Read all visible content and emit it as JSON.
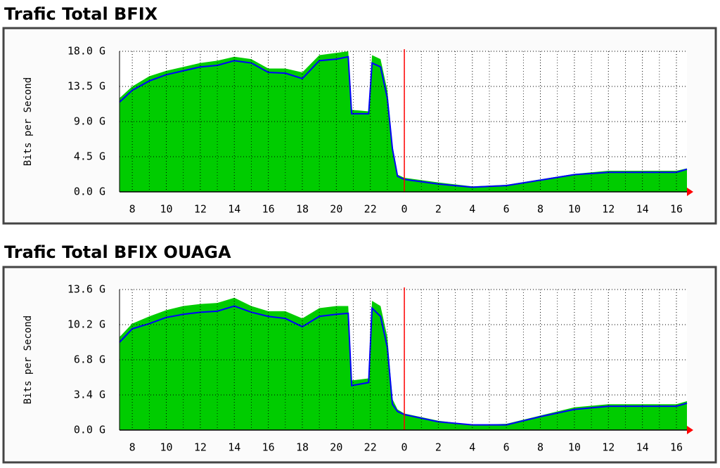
{
  "chart_data": [
    {
      "type": "area",
      "title": "Trafic Total BFIX",
      "y_label": "Bits per Second",
      "x": [
        7.25,
        8,
        9,
        10,
        11,
        12,
        13,
        14,
        15,
        16,
        17,
        18,
        19,
        20,
        20.7,
        20.9,
        21.9,
        22.1,
        22.6,
        23,
        23.3,
        23.6,
        24,
        26,
        28,
        30,
        32,
        34,
        36,
        38,
        40,
        40.62
      ],
      "series": [
        {
          "color": "#00cc00",
          "values": [
            12,
            13.5,
            14.8,
            15.5,
            16,
            16.5,
            16.8,
            17.3,
            17,
            15.8,
            15.8,
            15.3,
            17.5,
            17.8,
            18,
            10.5,
            10.3,
            17.5,
            17,
            13,
            6,
            2.2,
            1.8,
            1.2,
            0.7,
            0.9,
            1.6,
            2.3,
            2.7,
            2.7,
            2.7,
            3.0
          ]
        },
        {
          "color": "#0000ff",
          "values": [
            11.5,
            13,
            14.2,
            15,
            15.5,
            16,
            16.2,
            16.8,
            16.5,
            15.3,
            15.2,
            14.5,
            16.8,
            17,
            17.3,
            10,
            10,
            16.5,
            16,
            12,
            5.5,
            2,
            1.6,
            1,
            0.6,
            0.8,
            1.5,
            2.2,
            2.5,
            2.5,
            2.5,
            2.9
          ]
        }
      ],
      "xlim": [
        7.25,
        40.62
      ],
      "xticks": [
        8,
        10,
        12,
        14,
        16,
        18,
        20,
        22,
        {
          "value": 24,
          "label": "0"
        },
        {
          "value": 26,
          "label": "2"
        },
        {
          "value": 28,
          "label": "4"
        },
        {
          "value": 30,
          "label": "6"
        },
        {
          "value": 32,
          "label": "8"
        },
        {
          "value": 34,
          "label": "10"
        },
        {
          "value": 36,
          "label": "12"
        },
        {
          "value": 38,
          "label": "14"
        },
        {
          "value": 40,
          "label": "16"
        }
      ],
      "ylim": [
        0,
        18
      ],
      "yticks": [
        {
          "value": 0,
          "label": "0.0 G"
        },
        {
          "value": 4.5,
          "label": "4.5 G"
        },
        {
          "value": 9,
          "label": "9.0 G"
        },
        {
          "value": 13.5,
          "label": "13.5 G"
        },
        {
          "value": 18,
          "label": "18.0 G"
        }
      ],
      "grid": true,
      "vrule": 24,
      "vrule_color": "#ff0000"
    },
    {
      "type": "area",
      "title": "Trafic Total BFIX OUAGA",
      "y_label": "Bits per Second",
      "x": [
        7.25,
        8,
        9,
        10,
        11,
        12,
        13,
        14,
        15,
        16,
        17,
        18,
        19,
        20,
        20.7,
        20.9,
        21.9,
        22.1,
        22.6,
        23,
        23.3,
        23.6,
        24,
        26,
        28,
        30,
        32,
        34,
        36,
        38,
        40,
        40.62
      ],
      "series": [
        {
          "color": "#00cc00",
          "values": [
            9,
            10.3,
            11,
            11.6,
            12,
            12.2,
            12.3,
            12.8,
            12,
            11.5,
            11.5,
            10.8,
            11.8,
            12,
            12,
            4.8,
            5,
            12.5,
            12,
            9,
            3,
            2,
            1.6,
            0.9,
            0.5,
            0.6,
            1.4,
            2.2,
            2.5,
            2.5,
            2.5,
            2.8
          ]
        },
        {
          "color": "#0000ff",
          "values": [
            8.5,
            9.8,
            10.3,
            10.9,
            11.2,
            11.4,
            11.5,
            12,
            11.4,
            11,
            10.8,
            10,
            11,
            11.2,
            11.3,
            4.3,
            4.6,
            11.8,
            11,
            8,
            2.5,
            1.8,
            1.5,
            0.8,
            0.5,
            0.5,
            1.3,
            2.0,
            2.3,
            2.3,
            2.3,
            2.6
          ]
        }
      ],
      "xlim": [
        7.25,
        40.62
      ],
      "xticks": [
        8,
        10,
        12,
        14,
        16,
        18,
        20,
        22,
        {
          "value": 24,
          "label": "0"
        },
        {
          "value": 26,
          "label": "2"
        },
        {
          "value": 28,
          "label": "4"
        },
        {
          "value": 30,
          "label": "6"
        },
        {
          "value": 32,
          "label": "8"
        },
        {
          "value": 34,
          "label": "10"
        },
        {
          "value": 36,
          "label": "12"
        },
        {
          "value": 38,
          "label": "14"
        },
        {
          "value": 40,
          "label": "16"
        }
      ],
      "ylim": [
        0,
        13.6
      ],
      "yticks": [
        {
          "value": 0,
          "label": "0.0 G"
        },
        {
          "value": 3.4,
          "label": "3.4 G"
        },
        {
          "value": 6.8,
          "label": "6.8 G"
        },
        {
          "value": 10.2,
          "label": "10.2 G"
        },
        {
          "value": 13.6,
          "label": "13.6 G"
        }
      ],
      "grid": true,
      "vrule": 24,
      "vrule_color": "#ff0000"
    }
  ]
}
